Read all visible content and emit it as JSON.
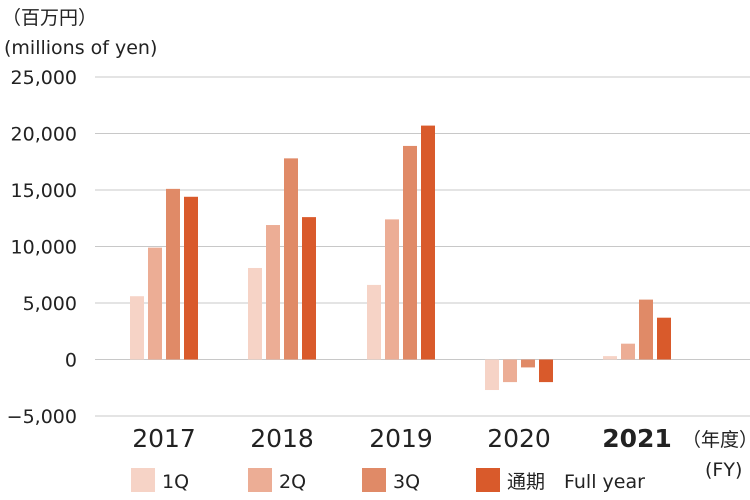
{
  "chart_data": {
    "type": "bar",
    "ylabel_jp": "（百万円）",
    "ylabel_en": "(millions of yen)",
    "ylim": [
      -5000,
      25000
    ],
    "yticks": [
      25000,
      20000,
      15000,
      10000,
      5000,
      0,
      -5000
    ],
    "ytick_labels": [
      "25,000",
      "20,000",
      "15,000",
      "10,000",
      "5,000",
      "0",
      "−5,000"
    ],
    "grid": true,
    "categories": [
      "2017",
      "2018",
      "2019",
      "2020",
      "2021"
    ],
    "highlight_category": "2021",
    "xunit_jp": "（年度）",
    "xunit_en": "(FY)",
    "series": [
      {
        "name": "1Q",
        "color": "#f6d3c6",
        "values": [
          5600,
          8100,
          6600,
          -2700,
          300
        ]
      },
      {
        "name": "2Q",
        "color": "#ecad95",
        "values": [
          9900,
          11900,
          12400,
          -2000,
          1400
        ]
      },
      {
        "name": "3Q",
        "color": "#e08a67",
        "values": [
          15100,
          17800,
          18900,
          -700,
          5300
        ]
      },
      {
        "name": "通期　Full year",
        "color": "#d95a2b",
        "values": [
          14400,
          12600,
          20700,
          -2000,
          3700
        ]
      }
    ],
    "legend_position": "bottom"
  }
}
